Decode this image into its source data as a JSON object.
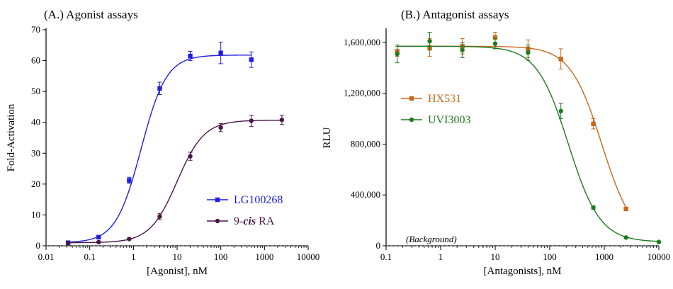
{
  "chart_data": [
    {
      "type": "scatter",
      "title": "(A.) Agonist assays",
      "xlabel": "[Agonist], nM",
      "ylabel": "Fold-Activation",
      "x_scale": "log",
      "xlim": [
        0.01,
        10000
      ],
      "ylim": [
        0,
        70
      ],
      "x_ticks": [
        0.01,
        0.1,
        1,
        10,
        100,
        1000,
        10000
      ],
      "x_tick_labels": [
        "0.01",
        "0.1",
        "1",
        "10",
        "100",
        "1000",
        "10000"
      ],
      "y_ticks": [
        0,
        10,
        20,
        30,
        40,
        50,
        60,
        70
      ],
      "y_tick_labels": [
        "0",
        "10",
        "20",
        "30",
        "40",
        "50",
        "60",
        "70"
      ],
      "grid": false,
      "legend": "lower-right",
      "baseline": 0,
      "series": [
        {
          "name": "LG100268",
          "color": "#1f1fe0",
          "marker": "square",
          "x": [
            0.032,
            0.16,
            0.8,
            4,
            20,
            100,
            500
          ],
          "y": [
            1.0,
            2.8,
            21.2,
            51.0,
            61.5,
            62.5,
            60.3
          ],
          "err": [
            0.3,
            0.5,
            1.0,
            2.0,
            1.5,
            3.5,
            2.5
          ],
          "fit": {
            "bottom": 1.0,
            "top": 61.8,
            "ec50": 1.5,
            "hill": 1.5
          }
        },
        {
          "name_parts": [
            "9-",
            "cis",
            " RA"
          ],
          "color": "#4a1548",
          "marker": "circle",
          "x": [
            0.032,
            0.16,
            0.8,
            4,
            20,
            100,
            500,
            2500
          ],
          "y": [
            0.8,
            1.2,
            2.2,
            9.5,
            29.0,
            38.3,
            40.5,
            40.8
          ],
          "err": [
            0.2,
            0.3,
            0.3,
            1.0,
            1.3,
            1.3,
            1.8,
            1.5
          ],
          "fit": {
            "bottom": 1.0,
            "top": 40.7,
            "ec50": 10,
            "hill": 1.4
          }
        }
      ]
    },
    {
      "type": "scatter",
      "title": "(B.) Antagonist assays",
      "xlabel": "[Antagonists], nM",
      "ylabel": "RLU",
      "x_scale": "log",
      "xlim": [
        0.1,
        10000
      ],
      "ylim": [
        0,
        1700000
      ],
      "x_ticks": [
        0.1,
        1,
        10,
        100,
        1000,
        10000
      ],
      "x_tick_labels": [
        "0.1",
        "1",
        "10",
        "100",
        "1000",
        "10000"
      ],
      "y_ticks": [
        0,
        400000,
        800000,
        1200000,
        1600000
      ],
      "y_tick_labels": [
        "0",
        "400,000",
        "800,000",
        "1,200,000",
        "1,600,000"
      ],
      "grid": false,
      "legend": "upper-left",
      "baseline": 0,
      "baseline_label": "(Background)",
      "series": [
        {
          "name": "HX531",
          "color": "#c8691d",
          "marker": "square",
          "x": [
            0.16,
            0.63,
            2.5,
            10,
            40,
            160,
            630,
            2500
          ],
          "y": [
            1530000,
            1560000,
            1570000,
            1640000,
            1550000,
            1470000,
            960000,
            290000
          ],
          "err": [
            40000,
            70000,
            60000,
            40000,
            70000,
            80000,
            40000,
            10000
          ],
          "fit": {
            "bottom": 30000,
            "top": 1570000,
            "ic50": 900,
            "hill": 1.5
          }
        },
        {
          "name": "UVI3003",
          "color": "#1f7a1f",
          "marker": "circle",
          "x": [
            0.16,
            0.63,
            2.5,
            10,
            40,
            160,
            630,
            2500,
            10000
          ],
          "y": [
            1510000,
            1610000,
            1540000,
            1590000,
            1520000,
            1060000,
            300000,
            65000,
            30000
          ],
          "err": [
            70000,
            70000,
            60000,
            40000,
            60000,
            60000,
            15000,
            8000,
            5000
          ],
          "fit": {
            "bottom": 30000,
            "top": 1570000,
            "ic50": 220,
            "hill": 1.5
          }
        }
      ]
    }
  ]
}
